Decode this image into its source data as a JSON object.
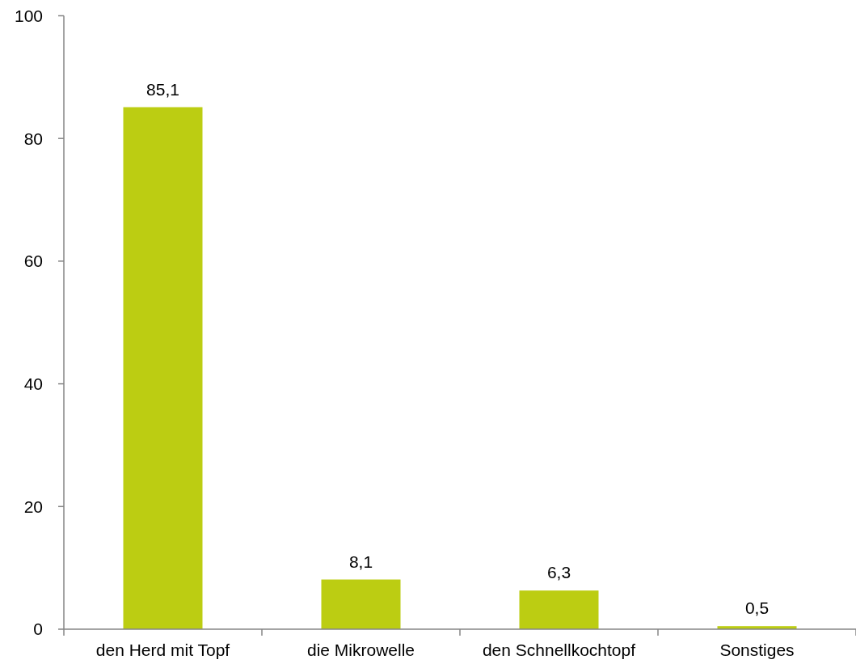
{
  "chart_data": {
    "type": "bar",
    "categories": [
      "den Herd mit Topf",
      "die Mikrowelle",
      "den Schnellkochtopf",
      "Sonstiges"
    ],
    "values": [
      85.1,
      8.1,
      6.3,
      0.5
    ],
    "color": "#bccd12",
    "value_labels": [
      "85,1",
      "8,1",
      "6,3",
      "0,5"
    ],
    "ylim": [
      0,
      100
    ],
    "yticks": [
      0,
      20,
      40,
      60,
      80,
      100
    ],
    "grid": false
  }
}
